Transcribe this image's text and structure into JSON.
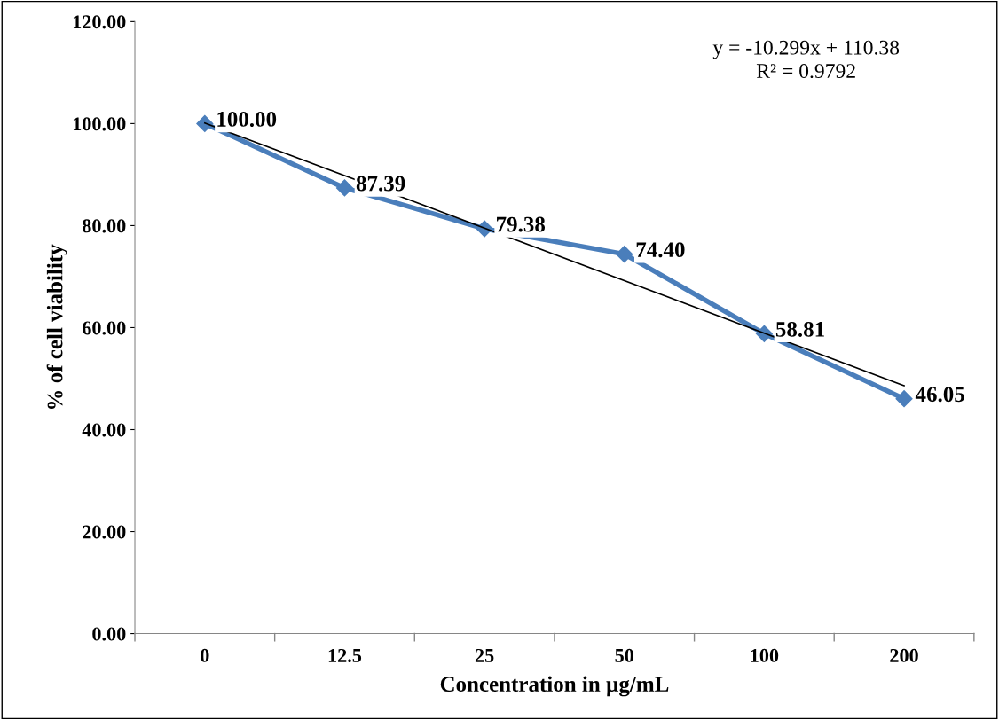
{
  "chart_data": {
    "type": "line",
    "xlabel": "Concentration in µg/mL",
    "ylabel": "% of cell viability",
    "categories": [
      "0",
      "12.5",
      "25",
      "50",
      "100",
      "200"
    ],
    "series": [
      {
        "color": "#4a7ebb",
        "values": [
          100.0,
          87.39,
          79.38,
          74.4,
          58.81,
          46.05
        ],
        "value_labels": [
          "100.00",
          "87.39",
          "79.38",
          "74.40",
          "58.81",
          "46.05"
        ],
        "marker": "diamond"
      },
      {
        "type": "line",
        "color": "#000000",
        "x": [
          "0",
          "200"
        ],
        "values": [
          100.1,
          48.6
        ],
        "marker": "none"
      }
    ],
    "ylim": [
      0,
      120
    ],
    "yticks": [
      {
        "value": 0,
        "label": "0.00"
      },
      {
        "value": 20,
        "label": "20.00"
      },
      {
        "value": 40,
        "label": "40.00"
      },
      {
        "value": 60,
        "label": "60.00"
      },
      {
        "value": 80,
        "label": "80.00"
      },
      {
        "value": 100,
        "label": "100.00"
      },
      {
        "value": 120,
        "label": "120.00"
      }
    ],
    "annotations": [
      "y = -10.299x + 110.38\nR² = 0.9792"
    ],
    "grid": false,
    "legend": false
  }
}
